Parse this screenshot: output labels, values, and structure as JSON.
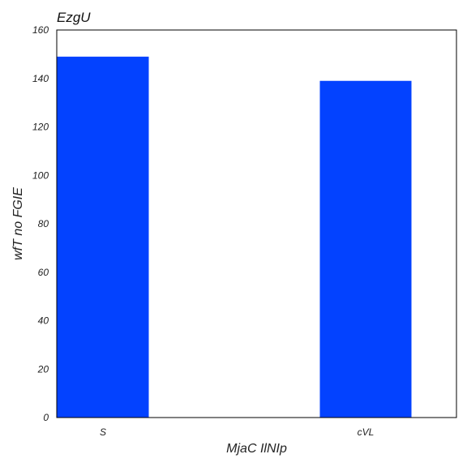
{
  "chart_data": {
    "type": "bar",
    "title": "EzgU",
    "xlabel": "MjaC IlNIp",
    "ylabel": "wfT no FGIE",
    "categories": [
      "S",
      "cVL"
    ],
    "values": [
      149,
      139
    ],
    "ylim": [
      0,
      160
    ],
    "yticks": [
      0,
      20,
      40,
      60,
      80,
      100,
      120,
      140,
      160
    ],
    "grid": false,
    "legend": "none",
    "bar_color": "#0342ff"
  }
}
